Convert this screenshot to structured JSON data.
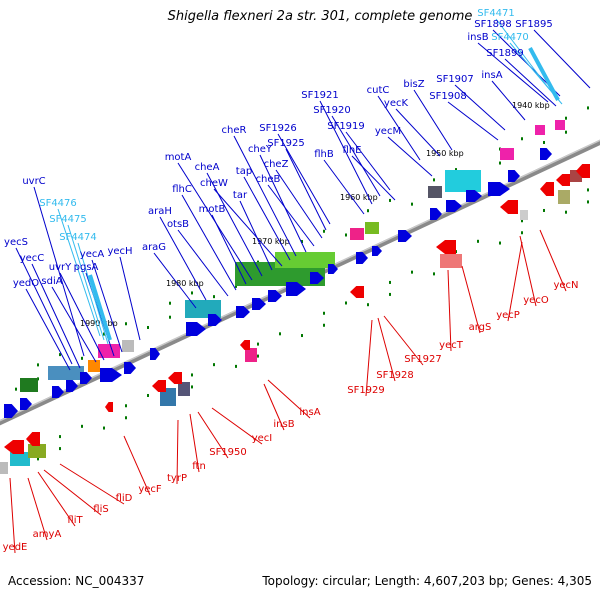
{
  "title": "Shigella flexneri 2a str. 301, complete genome",
  "accession": "Accession: NC_004337",
  "summary": "Topology: circular; Length: 4,607,203 bp; Genes: 4,305",
  "colors": {
    "forward_label": "#0000cc",
    "reverse_label": "#dd0000",
    "rna_label": "#33bbee",
    "backbone": "#999999"
  },
  "kbp_marks": [
    "1940 kbp",
    "1950 kbp",
    "1960 kbp",
    "1970 kbp",
    "1980 kbp",
    "1990 kbp"
  ],
  "forward_labels": [
    "SF1898",
    "SF1895",
    "insB",
    "SF1899",
    "insA",
    "SF1907",
    "SF1908",
    "bisZ",
    "yecK",
    "cutC",
    "yecM",
    "flhE",
    "SF1919",
    "SF1920",
    "SF1921",
    "flhB",
    "SF1926",
    "SF1925",
    "cheZ",
    "cheB",
    "cheY",
    "cheR",
    "tap",
    "cheW",
    "tar",
    "cheA",
    "motA",
    "motB",
    "flhC",
    "otsB",
    "araH",
    "araG",
    "yecH",
    "uvrC",
    "yecA",
    "pgsA",
    "uvrY",
    "sdiA",
    "yecS",
    "yecC",
    "yedO"
  ],
  "rna_labels": [
    "SF4471",
    "SF4470",
    "SF4476",
    "SF4475",
    "SF4474"
  ],
  "reverse_labels": [
    "yecN",
    "yecO",
    "yecP",
    "argS",
    "yecT",
    "SF1927",
    "SF1928",
    "SF1929",
    "insA",
    "insB",
    "yecI",
    "SF1950",
    "ftn",
    "tyrP",
    "yecF",
    "fliD",
    "fliS",
    "fliT",
    "amyA",
    "yedE"
  ]
}
